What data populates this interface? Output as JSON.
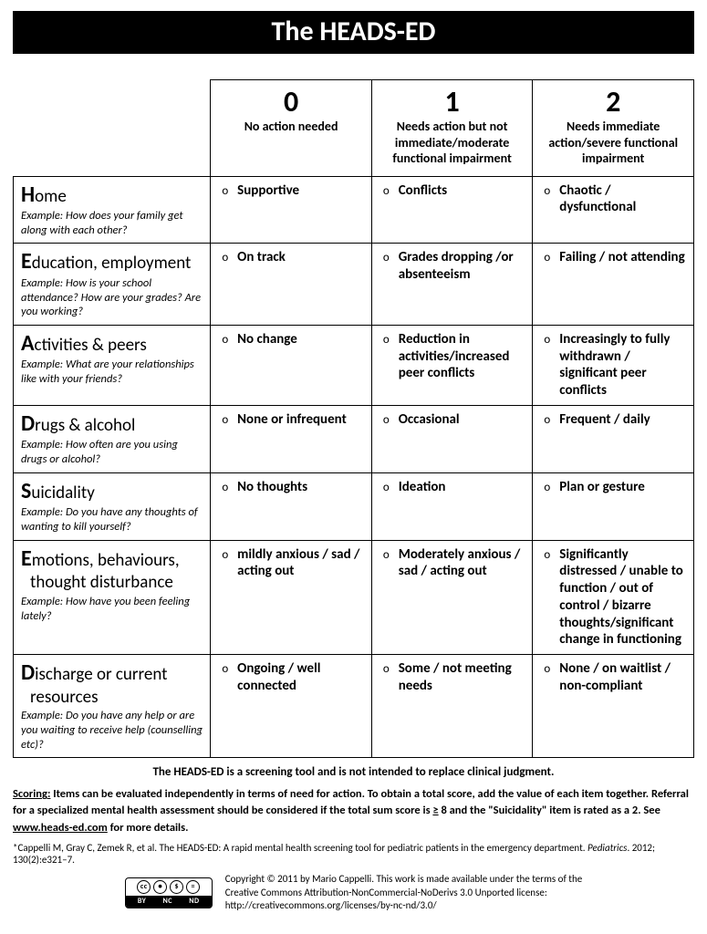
{
  "title": "The HEADS-ED",
  "columns": [
    {
      "score": "0",
      "desc": "No action needed"
    },
    {
      "score": "1",
      "desc": "Needs action but not immediate/moderate functional impairment"
    },
    {
      "score": "2",
      "desc": "Needs immediate action/severe functional impairment"
    }
  ],
  "rows": [
    {
      "letter": "H",
      "rest": "ome",
      "example": "Example: How does your family get along with each other?",
      "opts": [
        "Supportive",
        "Conflicts",
        "Chaotic / dysfunctional"
      ]
    },
    {
      "letter": "E",
      "rest": "ducation, employment",
      "example": "Example: How is your school attendance? How are your grades? Are you working?",
      "opts": [
        "On track",
        "Grades dropping /or absenteeism",
        "Failing / not attending"
      ]
    },
    {
      "letter": "A",
      "rest": "ctivities & peers",
      "example": "Example: What are your relationships like with your friends?",
      "opts": [
        "No change",
        "Reduction in activities/increased peer conflicts",
        "Increasingly to fully withdrawn / significant peer conflicts"
      ]
    },
    {
      "letter": "D",
      "rest": "rugs & alcohol",
      "example": "Example: How often are you using drugs or alcohol?",
      "opts": [
        "None or infrequent",
        "Occasional",
        "Frequent / daily"
      ]
    },
    {
      "letter": "S",
      "rest": "uicidality",
      "example": "Example: Do you have any thoughts of wanting to kill yourself?",
      "opts": [
        "No thoughts",
        "Ideation",
        "Plan or gesture"
      ]
    },
    {
      "letter": "E",
      "rest": "motions, behaviours,",
      "line2": "  thought disturbance",
      "example": "Example: How have you been feeling lately?",
      "opts": [
        "mildly anxious / sad / acting out",
        "Moderately anxious / sad / acting out",
        "Significantly distressed / unable to function / out of control / bizarre thoughts/significant change in functioning"
      ]
    },
    {
      "letter": "D",
      "rest": "ischarge or current",
      "line2": "  resources",
      "example": "Example: Do you have any help or are you waiting to receive help (counselling etc)?",
      "opts": [
        "Ongoing / well connected",
        "Some / not meeting needs",
        "None / on waitlist / non-compliant"
      ]
    }
  ],
  "disclaimer": "The HEADS-ED is a screening tool and is not intended to replace clinical judgment.",
  "scoring_label": "Scoring:",
  "scoring_text_1": " Items can be evaluated independently in terms of need for action. To obtain a total score, add the value of each item together. Referral for a specialized mental health assessment should be considered if the total sum score is ",
  "scoring_ge": "≥",
  "scoring_text_2": " 8 and the \"Suicidality\" item is rated as a 2.  See ",
  "scoring_link": "www.heads-ed.com",
  "scoring_text_3": " for more details.",
  "citation_pre": "*Cappelli M, Gray C, Zemek R, et al. The HEADS-ED: A rapid mental health screening tool for pediatric patients in the emergency department. ",
  "citation_ital": "Pediatrics",
  "citation_post": ". 2012; 130(2):e321–7.",
  "cc": {
    "by": "BY",
    "nc": "NC",
    "nd": "ND",
    "text1": "Copyright © 2011 by Mario Cappelli. This work is made available under the terms of the",
    "text2": "Creative Commons Attribution-NonCommercial-NoDerivs 3.0 Unported license:",
    "text3": "http://creativecommons.org/licenses/by-nc-nd/3.0/"
  },
  "col_widths": {
    "rowhead": "29%",
    "cell": "23.67%"
  }
}
